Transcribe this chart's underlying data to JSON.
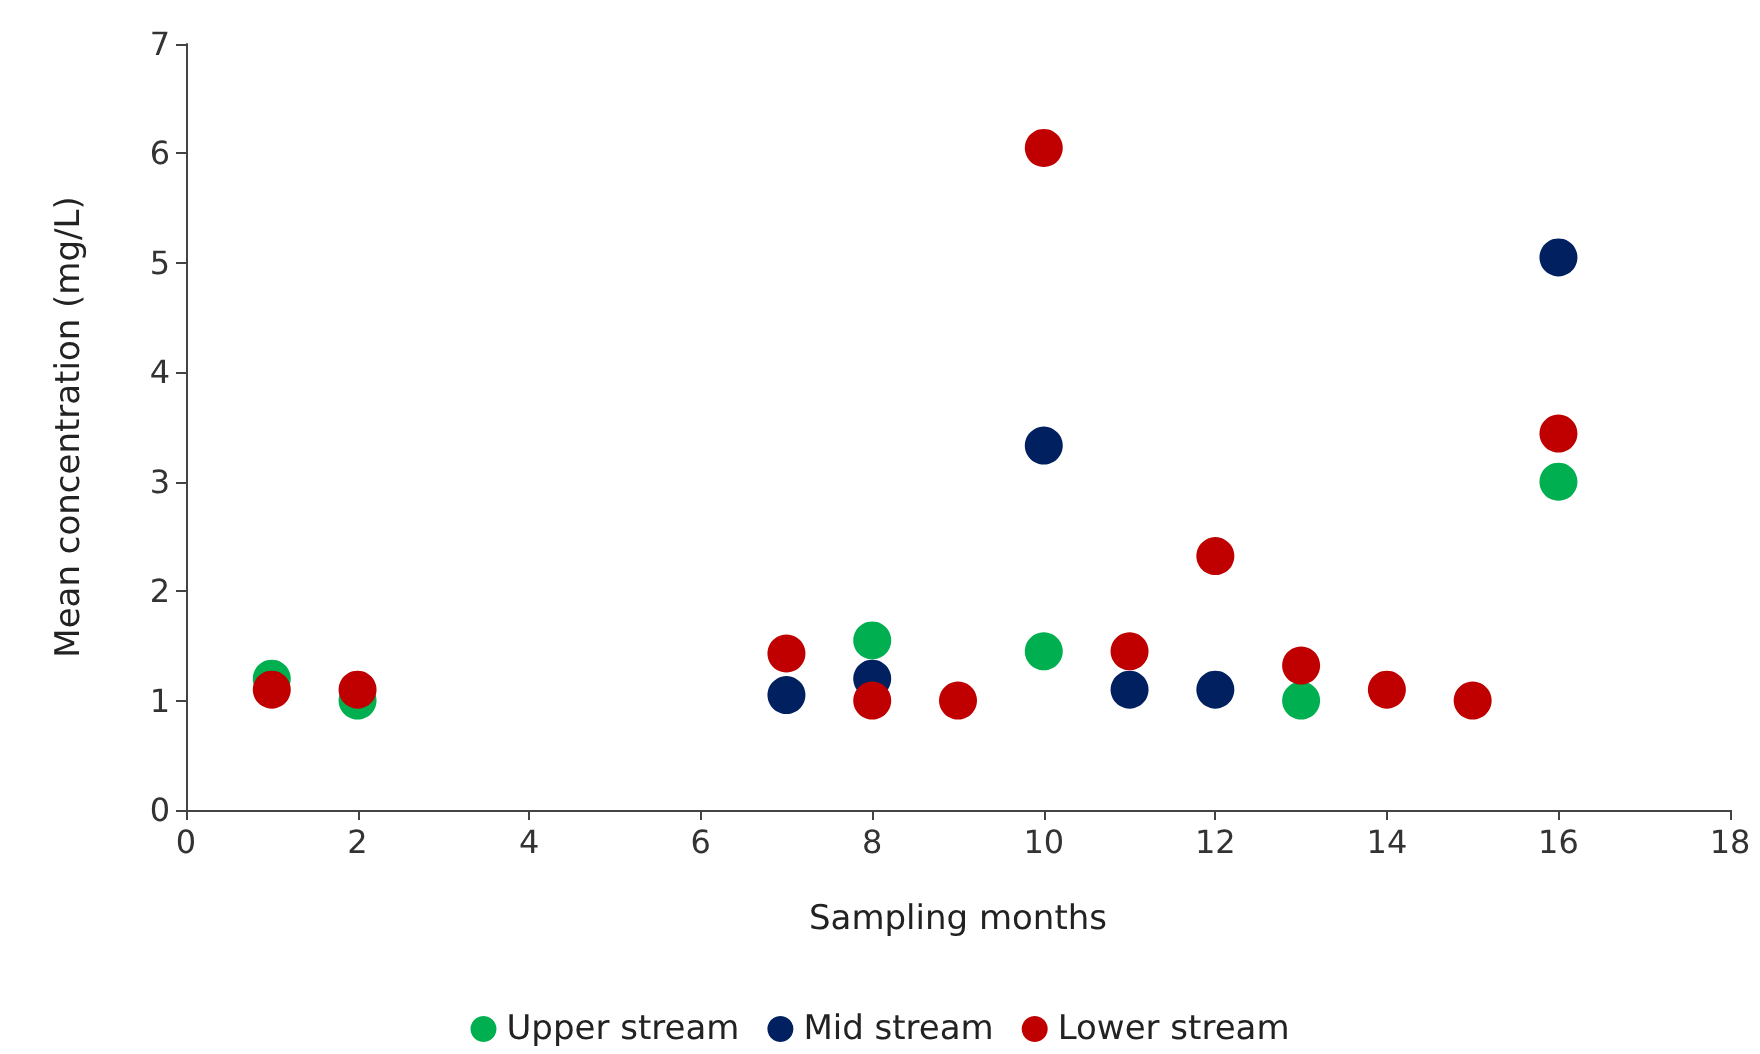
{
  "chart_data": {
    "type": "scatter",
    "xlabel": "Sampling months",
    "ylabel": "Mean concentration (mg/L)",
    "xlim": [
      0,
      18
    ],
    "xticks": [
      0,
      2,
      4,
      6,
      8,
      10,
      12,
      14,
      16,
      18
    ],
    "ylim": [
      0,
      7
    ],
    "yticks": [
      0,
      1,
      2,
      3,
      4,
      5,
      6,
      7
    ],
    "grid": false,
    "legend": "bottom",
    "marker": "circle",
    "series": [
      {
        "name": "Upper stream",
        "color": "#00b050",
        "x": [
          1,
          2,
          8,
          10,
          13,
          16
        ],
        "values": [
          1.2,
          1.0,
          1.55,
          1.45,
          1.0,
          3.0
        ]
      },
      {
        "name": "Mid stream",
        "color": "#002060",
        "x": [
          7,
          8,
          10,
          11,
          12,
          16
        ],
        "values": [
          1.05,
          1.2,
          3.33,
          1.1,
          1.1,
          5.05
        ]
      },
      {
        "name": "Lower stream",
        "color": "#c00000",
        "x": [
          1,
          2,
          7,
          8,
          9,
          10,
          11,
          12,
          13,
          14,
          15,
          16
        ],
        "values": [
          1.1,
          1.1,
          1.43,
          1.0,
          1.0,
          6.05,
          1.45,
          2.32,
          1.32,
          1.1,
          1.0,
          3.44
        ]
      }
    ]
  }
}
